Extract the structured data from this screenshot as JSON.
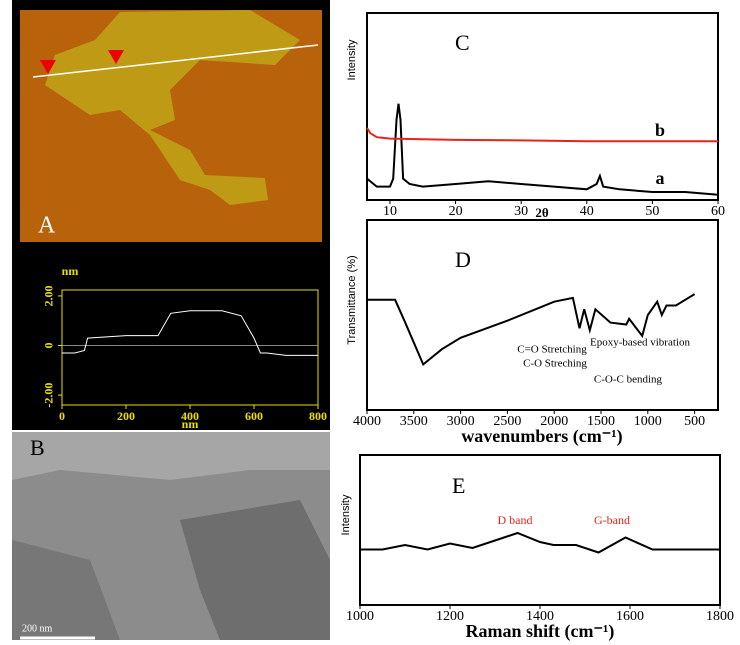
{
  "images": [
    {
      "panel_label": "A"
    },
    {
      "panel_label": "B",
      "scale_bar": "200 nm"
    }
  ],
  "chart_data": [
    {
      "type": "line",
      "xlabel": "nm",
      "ylabel": "nm",
      "xlim": [
        0,
        800
      ],
      "ylim": [
        -2.4,
        2.24
      ],
      "xticks": [
        0,
        200,
        400,
        600,
        800
      ],
      "yticks": [
        {
          "value": 2,
          "label": "2.00"
        },
        0,
        {
          "value": -2,
          "label": "-2.00"
        }
      ],
      "series": [
        {
          "color": "#ffffff",
          "x": [
            0,
            40,
            70,
            80,
            200,
            300,
            340,
            400,
            500,
            560,
            600,
            620,
            640,
            700,
            800
          ],
          "values": [
            -0.3,
            -0.3,
            -0.2,
            0.3,
            0.4,
            0.4,
            1.3,
            1.4,
            1.4,
            1.2,
            0.3,
            -0.3,
            -0.3,
            -0.4,
            -0.4
          ]
        }
      ]
    },
    {
      "type": "line",
      "panel_label": "C",
      "xlabel": "2θ",
      "ylabel": "Intensity",
      "xlim": [
        6.5,
        60
      ],
      "ylim": [
        0,
        70
      ],
      "xticks": [
        10,
        20,
        30,
        40,
        50,
        60
      ],
      "annotations": [
        "a",
        "b"
      ],
      "series": [
        {
          "color": "#000000",
          "x": [
            6.5,
            8,
            10,
            10.5,
            11,
            11.3,
            11.6,
            12,
            13,
            15,
            20,
            25,
            30,
            35,
            40,
            41.5,
            42,
            42.5,
            45,
            50,
            55,
            60
          ],
          "values": [
            8,
            5,
            5,
            8,
            30,
            36,
            30,
            8,
            6,
            5,
            6,
            7,
            6,
            5,
            4,
            6,
            9,
            5,
            4,
            3,
            3,
            2
          ]
        },
        {
          "color": "#e8231c",
          "x": [
            6.5,
            7,
            8,
            10,
            20,
            30,
            40,
            50,
            60
          ],
          "values": [
            27,
            25,
            23.5,
            23,
            22.5,
            22.3,
            22,
            22,
            22
          ]
        }
      ]
    },
    {
      "type": "line",
      "panel_label": "D",
      "xlabel": "wavenumbers (cm⁻¹)",
      "ylabel": "Transmittance (%)",
      "xlim": [
        4000,
        250
      ],
      "ylim": [
        0,
        100
      ],
      "xticks": [
        4000,
        3500,
        3000,
        2500,
        2000,
        1500,
        1000,
        500
      ],
      "annotations": [
        "C=O Stretching",
        "C-O Streching",
        "Epoxy-based vibration",
        "C-O-C bending"
      ],
      "series": [
        {
          "color": "#000000",
          "x": [
            4000,
            3700,
            3600,
            3400,
            3200,
            3000,
            2500,
            2000,
            1800,
            1730,
            1680,
            1620,
            1560,
            1400,
            1230,
            1200,
            1060,
            1000,
            900,
            850,
            800,
            700,
            600,
            500
          ],
          "values": [
            58,
            58,
            47,
            24,
            32,
            38,
            47,
            57,
            59,
            43,
            53,
            42,
            53,
            46,
            45,
            48,
            39,
            50,
            57,
            50,
            55,
            55,
            58,
            61
          ]
        }
      ]
    },
    {
      "type": "line",
      "panel_label": "E",
      "xlabel": "Raman shift (cm⁻¹)",
      "ylabel": "Intensity",
      "xlim": [
        1000,
        1800
      ],
      "ylim": [
        0,
        100
      ],
      "xticks": [
        1000,
        1200,
        1400,
        1600,
        1800
      ],
      "annotations": [
        "D band",
        "G-band"
      ],
      "series": [
        {
          "color": "#000000",
          "x": [
            1000,
            1050,
            1100,
            1150,
            1200,
            1250,
            1300,
            1350,
            1400,
            1430,
            1480,
            1530,
            1590,
            1650,
            1700,
            1800
          ],
          "values": [
            37,
            37,
            40,
            37,
            41,
            38,
            43,
            48,
            42,
            40,
            40,
            35,
            45,
            37,
            37,
            37
          ]
        }
      ]
    }
  ]
}
